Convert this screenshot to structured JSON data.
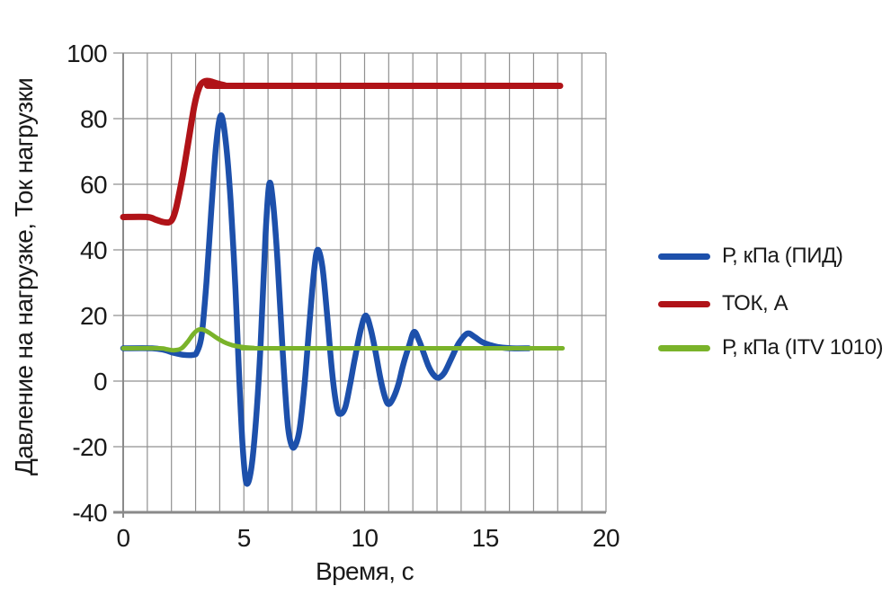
{
  "chart_data": {
    "type": "line",
    "title": "",
    "xlabel": "Время, с",
    "ylabel": "Давление на нагрузке, Ток нагрузки",
    "xlim": [
      0,
      20
    ],
    "ylim": [
      -40,
      100
    ],
    "x_major_ticks": [
      0,
      5,
      10,
      15,
      20
    ],
    "x_minor_step": 1,
    "y_ticks": [
      -40,
      -20,
      0,
      20,
      40,
      60,
      80,
      100
    ],
    "grid": "on",
    "zero_line_tick_xs": [
      5,
      10,
      15
    ],
    "legend_position": "right",
    "colors": {
      "grid": "#909090",
      "axis": "#8a8a8a",
      "text": "#1a1a1a",
      "background": "#ffffff"
    },
    "series": [
      {
        "name": "Р, кПа (ПИД)",
        "color": "#1d50ab",
        "points": [
          [
            0,
            10
          ],
          [
            1.2,
            10
          ],
          [
            1.7,
            9.5
          ],
          [
            2.1,
            8.6
          ],
          [
            2.5,
            8
          ],
          [
            2.9,
            8
          ],
          [
            3.05,
            8.8
          ],
          [
            3.25,
            14
          ],
          [
            3.45,
            30
          ],
          [
            3.65,
            52
          ],
          [
            3.85,
            72
          ],
          [
            4.05,
            81
          ],
          [
            4.25,
            73
          ],
          [
            4.45,
            55
          ],
          [
            4.65,
            28
          ],
          [
            4.8,
            2
          ],
          [
            4.95,
            -20
          ],
          [
            5.1,
            -31
          ],
          [
            5.3,
            -27
          ],
          [
            5.5,
            -12
          ],
          [
            5.7,
            12
          ],
          [
            5.9,
            45
          ],
          [
            6.05,
            60
          ],
          [
            6.2,
            55
          ],
          [
            6.4,
            36
          ],
          [
            6.6,
            10
          ],
          [
            6.8,
            -12
          ],
          [
            6.95,
            -19
          ],
          [
            7.1,
            -20
          ],
          [
            7.3,
            -15
          ],
          [
            7.5,
            -2
          ],
          [
            7.7,
            16
          ],
          [
            7.9,
            33
          ],
          [
            8.05,
            40
          ],
          [
            8.25,
            35
          ],
          [
            8.45,
            20
          ],
          [
            8.65,
            3
          ],
          [
            8.85,
            -8
          ],
          [
            9.0,
            -10
          ],
          [
            9.2,
            -8
          ],
          [
            9.4,
            -1
          ],
          [
            9.6,
            7
          ],
          [
            9.85,
            16
          ],
          [
            10.05,
            20
          ],
          [
            10.25,
            16
          ],
          [
            10.45,
            9
          ],
          [
            10.65,
            1
          ],
          [
            10.85,
            -5
          ],
          [
            11.0,
            -7
          ],
          [
            11.2,
            -5
          ],
          [
            11.4,
            -1
          ],
          [
            11.6,
            5
          ],
          [
            11.85,
            11
          ],
          [
            12.05,
            15
          ],
          [
            12.25,
            12.5
          ],
          [
            12.45,
            8.5
          ],
          [
            12.65,
            4.5
          ],
          [
            12.85,
            2
          ],
          [
            13.05,
            1
          ],
          [
            13.3,
            2.5
          ],
          [
            13.6,
            7
          ],
          [
            13.9,
            11.5
          ],
          [
            14.25,
            14.5
          ],
          [
            14.55,
            13.5
          ],
          [
            14.85,
            12
          ],
          [
            15.2,
            11
          ],
          [
            15.6,
            10.3
          ],
          [
            16.1,
            10
          ],
          [
            16.8,
            10
          ]
        ]
      },
      {
        "name": "ТОК, А",
        "color": "#b01318",
        "points": [
          [
            0,
            50
          ],
          [
            1.0,
            50
          ],
          [
            1.35,
            49.2
          ],
          [
            1.65,
            48.5
          ],
          [
            1.9,
            48.4
          ],
          [
            2.05,
            49.5
          ],
          [
            2.2,
            53
          ],
          [
            2.45,
            62
          ],
          [
            2.7,
            73
          ],
          [
            2.95,
            84
          ],
          [
            3.15,
            89.5
          ],
          [
            3.35,
            91.3
          ],
          [
            3.6,
            91.4
          ],
          [
            3.9,
            90.7
          ],
          [
            4.2,
            90.2
          ],
          [
            4.6,
            90
          ],
          [
            18.1,
            90
          ]
        ]
      },
      {
        "name": "Р, кПа (ITV 1010)",
        "color": "#7ab32a",
        "points": [
          [
            0,
            10
          ],
          [
            1.5,
            10
          ],
          [
            1.8,
            9.7
          ],
          [
            2.1,
            9.4
          ],
          [
            2.4,
            9.9
          ],
          [
            2.65,
            11.8
          ],
          [
            2.9,
            14.3
          ],
          [
            3.1,
            15.6
          ],
          [
            3.3,
            15.7
          ],
          [
            3.55,
            14.8
          ],
          [
            3.85,
            13.3
          ],
          [
            4.15,
            12
          ],
          [
            4.5,
            11
          ],
          [
            4.9,
            10.4
          ],
          [
            5.4,
            10.1
          ],
          [
            6,
            10
          ],
          [
            18.2,
            10
          ]
        ]
      }
    ]
  },
  "axes": {
    "x_label": "Время, с",
    "y_label": "Давление на нагрузке, Ток нагрузки"
  }
}
